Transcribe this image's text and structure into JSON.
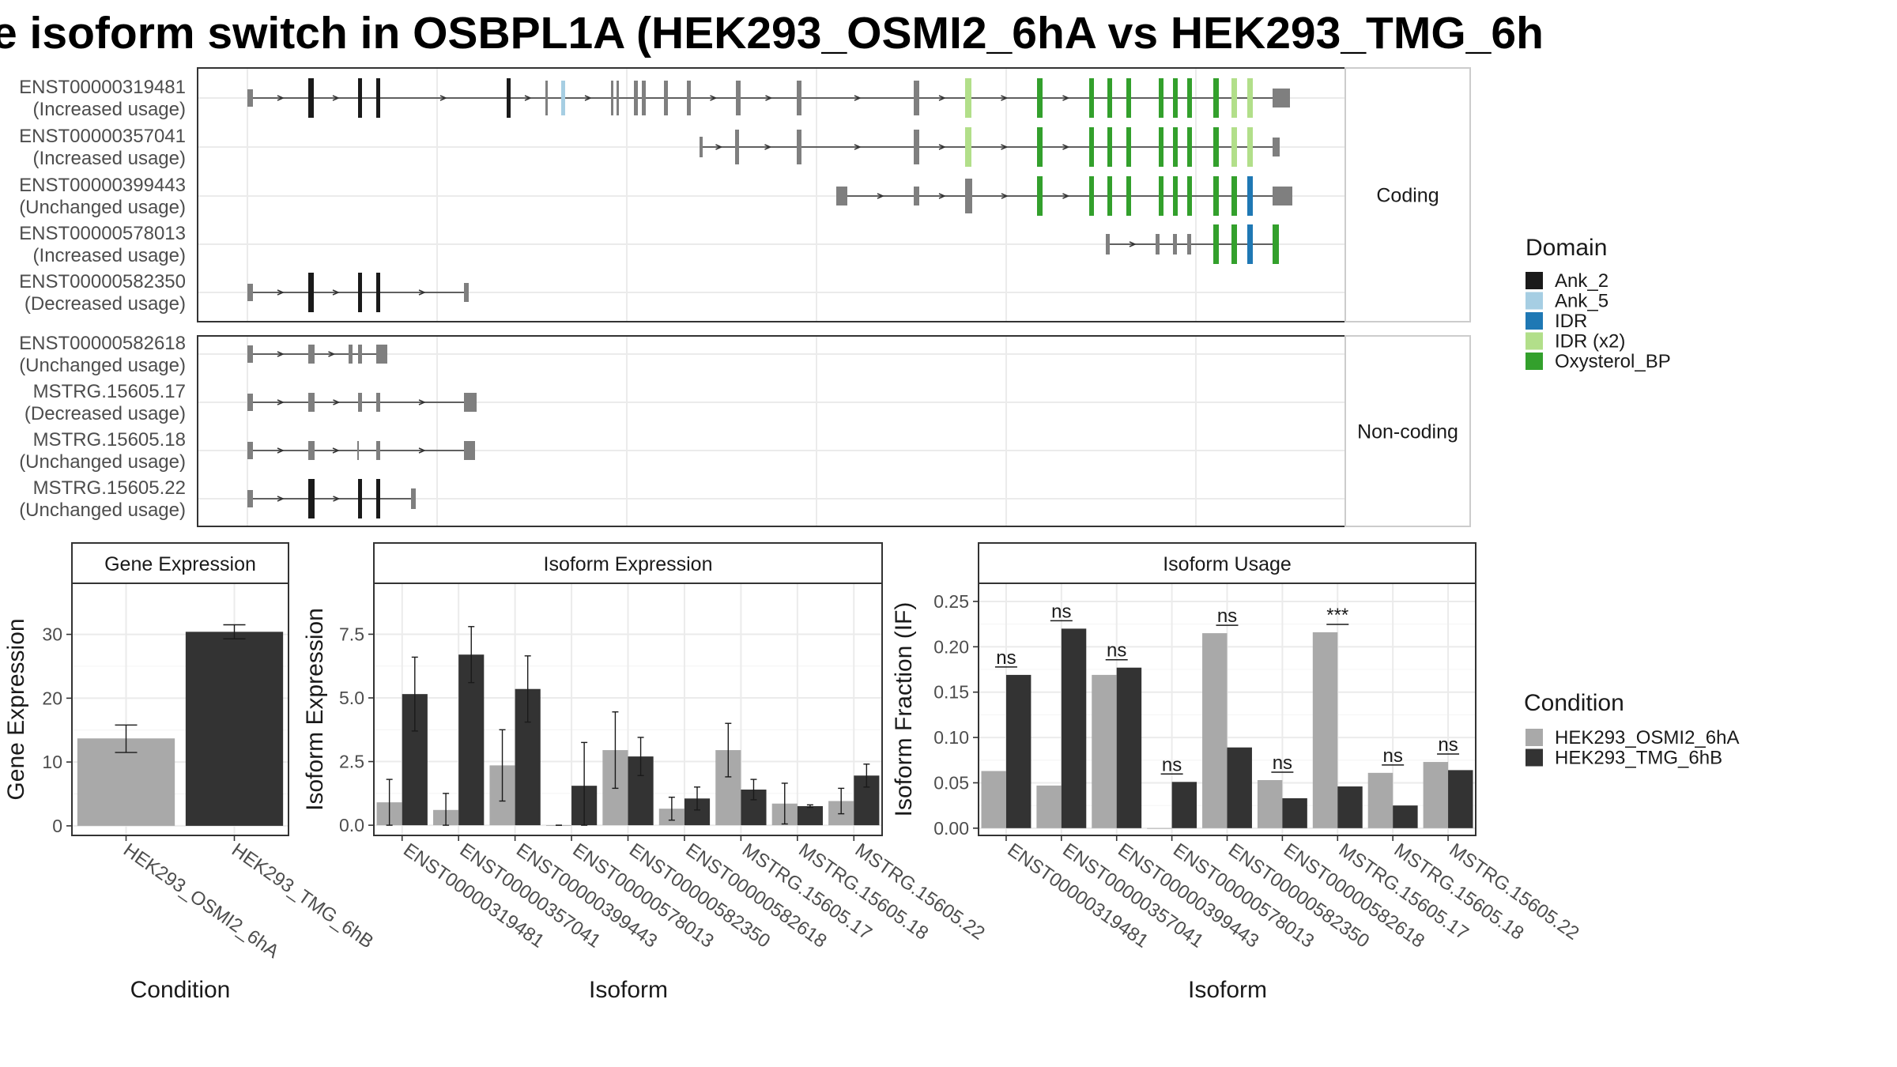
{
  "title": "e isoform switch in OSBPL1A (HEK293_OSMI2_6hA vs HEK293_TMG_6h",
  "structure": {
    "panels": [
      {
        "label": "Coding",
        "transcripts": [
          {
            "id": "ENST00000319481",
            "usage": "(Increased usage)"
          },
          {
            "id": "ENST00000357041",
            "usage": "(Increased usage)"
          },
          {
            "id": "ENST00000399443",
            "usage": "(Unchanged usage)"
          },
          {
            "id": "ENST00000578013",
            "usage": "(Increased usage)"
          },
          {
            "id": "ENST00000582350",
            "usage": "(Decreased usage)"
          }
        ]
      },
      {
        "label": "Non-coding",
        "transcripts": [
          {
            "id": "ENST00000582618",
            "usage": "(Unchanged usage)"
          },
          {
            "id": "MSTRG.15605.17",
            "usage": "(Decreased usage)"
          },
          {
            "id": "MSTRG.15605.18",
            "usage": "(Unchanged usage)"
          },
          {
            "id": "MSTRG.15605.22",
            "usage": "(Unchanged usage)"
          }
        ]
      }
    ]
  },
  "legend_domain": {
    "title": "Domain",
    "items": [
      {
        "label": "Ank_2",
        "color": "#1a1a1a"
      },
      {
        "label": "Ank_5",
        "color": "#a6cee3"
      },
      {
        "label": "IDR",
        "color": "#1f78b4"
      },
      {
        "label": "IDR (x2)",
        "color": "#b2df8a"
      },
      {
        "label": "Oxysterol_BP",
        "color": "#33a02c"
      }
    ]
  },
  "legend_condition": {
    "title": "Condition",
    "items": [
      {
        "label": "HEK293_OSMI2_6hA",
        "color": "#a9a9a9"
      },
      {
        "label": "HEK293_TMG_6hB",
        "color": "#333333"
      }
    ]
  },
  "chart_data": [
    {
      "type": "bar",
      "title": "Gene Expression",
      "xlabel": "Condition",
      "ylabel": "Gene Expression",
      "categories": [
        "HEK293_OSMI2_6hA",
        "HEK293_TMG_6hB"
      ],
      "values": [
        13.7,
        30.4
      ],
      "error_low": [
        11.5,
        29.3
      ],
      "error_high": [
        15.8,
        31.5
      ],
      "ylim": [
        -1.5,
        38
      ],
      "yticks": [
        0,
        10,
        20,
        30
      ],
      "ytick_labels": [
        "0",
        "10",
        "20",
        "30"
      ]
    },
    {
      "type": "bar",
      "title": "Isoform Expression",
      "xlabel": "Isoform",
      "ylabel": "Isoform Expression",
      "categories": [
        "ENST00000319481",
        "ENST00000357041",
        "ENST00000399443",
        "ENST00000578013",
        "ENST00000582350",
        "ENST00000582618",
        "MSTRG.15605.17",
        "MSTRG.15605.18",
        "MSTRG.15605.22"
      ],
      "series": [
        {
          "name": "HEK293_OSMI2_6hA",
          "values": [
            0.9,
            0.6,
            2.35,
            0.0,
            2.95,
            0.65,
            2.95,
            0.85,
            0.95
          ],
          "error_low": [
            0.0,
            0.0,
            0.95,
            0.0,
            1.45,
            0.2,
            1.9,
            0.05,
            0.45
          ],
          "error_high": [
            1.8,
            1.25,
            3.75,
            0.0,
            4.45,
            1.1,
            4.0,
            1.65,
            1.45
          ]
        },
        {
          "name": "HEK293_TMG_6hB",
          "values": [
            5.15,
            6.7,
            5.35,
            1.55,
            2.7,
            1.05,
            1.4,
            0.75,
            1.95
          ],
          "error_low": [
            3.7,
            5.6,
            4.05,
            0.0,
            1.95,
            0.6,
            1.0,
            0.7,
            1.5
          ],
          "error_high": [
            6.6,
            7.8,
            6.65,
            3.25,
            3.45,
            1.5,
            1.8,
            0.8,
            2.4
          ]
        }
      ],
      "ylim": [
        -0.4,
        9.5
      ],
      "yticks": [
        0,
        2.5,
        5,
        7.5
      ],
      "ytick_labels": [
        "0.0",
        "2.5",
        "5.0",
        "7.5"
      ]
    },
    {
      "type": "bar",
      "title": "Isoform Usage",
      "xlabel": "Isoform",
      "ylabel": "Isoform Fraction (IF)",
      "categories": [
        "ENST00000319481",
        "ENST00000357041",
        "ENST00000399443",
        "ENST00000578013",
        "ENST00000582350",
        "ENST00000582618",
        "MSTRG.15605.17",
        "MSTRG.15605.18",
        "MSTRG.15605.22"
      ],
      "series": [
        {
          "name": "HEK293_OSMI2_6hA",
          "values": [
            0.063,
            0.047,
            0.169,
            0.0,
            0.215,
            0.053,
            0.216,
            0.061,
            0.073
          ]
        },
        {
          "name": "HEK293_TMG_6hB",
          "values": [
            0.169,
            0.22,
            0.177,
            0.051,
            0.089,
            0.033,
            0.046,
            0.025,
            0.064
          ]
        }
      ],
      "significance": [
        "ns",
        "ns",
        "ns",
        "ns",
        "ns",
        "ns",
        "***",
        "ns",
        "ns"
      ],
      "ylim": [
        -0.008,
        0.27
      ],
      "yticks": [
        0,
        0.05,
        0.1,
        0.15,
        0.2,
        0.25
      ],
      "ytick_labels": [
        "0.00",
        "0.05",
        "0.10",
        "0.15",
        "0.20",
        "0.25"
      ]
    }
  ]
}
